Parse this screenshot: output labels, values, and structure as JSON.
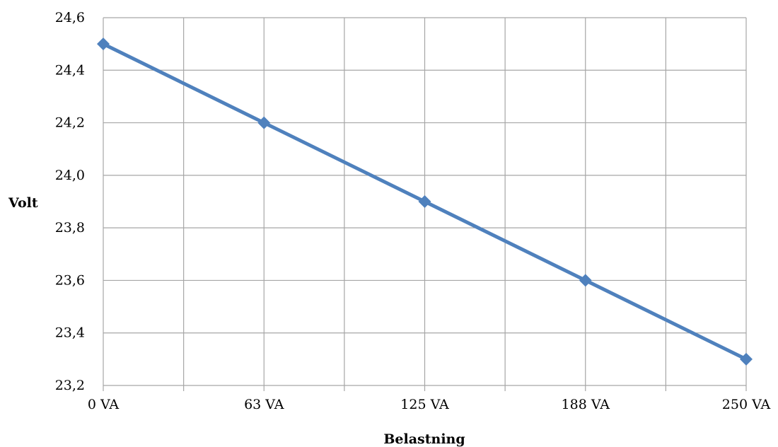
{
  "chart_data": {
    "type": "line",
    "xlabel": "Belastning",
    "ylabel": "Volt",
    "categories": [
      "0 VA",
      "63 VA",
      "125 VA",
      "188 VA",
      "250 VA"
    ],
    "series": [
      {
        "values": [
          24.5,
          24.2,
          23.9,
          23.6,
          23.3
        ]
      }
    ],
    "ylim": [
      23.2,
      24.6
    ],
    "yticks": [
      "23,2",
      "23,4",
      "23,6",
      "23,8",
      "24,0",
      "24,2",
      "24,4",
      "24,6"
    ],
    "grid": true,
    "legend": "none",
    "series_color": "#4f81bd",
    "grid_color": "#a6a6a6"
  }
}
